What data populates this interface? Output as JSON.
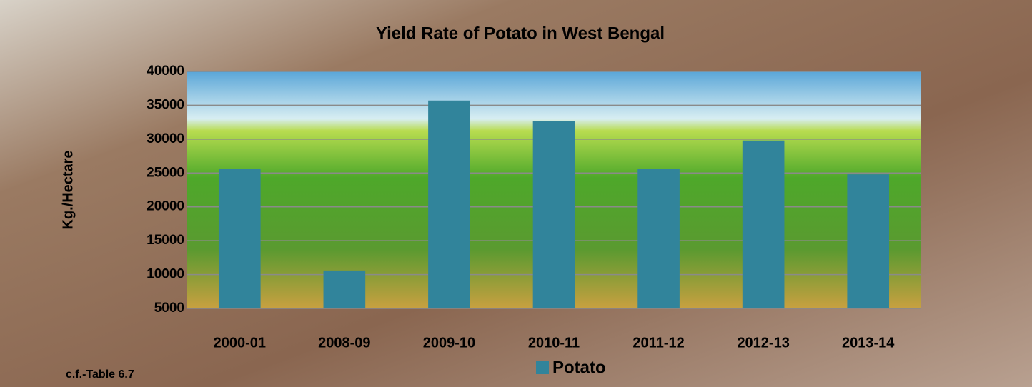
{
  "chart_data": {
    "type": "bar",
    "title": "Yield Rate of Potato in West Bengal",
    "y_label": "Kg./Hectare",
    "note": "c.f.-Table 6.7",
    "categories": [
      "2000-01",
      "2008-09",
      "2009-10",
      "2010-11",
      "2011-12",
      "2012-13",
      "2013-14"
    ],
    "series": [
      {
        "name": "Potato",
        "color": "#31849b",
        "values": [
          25600,
          10600,
          35700,
          32700,
          25600,
          29800,
          24800
        ]
      }
    ],
    "ylim": [
      5000,
      40000
    ],
    "yticks": [
      5000,
      10000,
      15000,
      20000,
      25000,
      30000,
      35000,
      40000
    ],
    "grid": true,
    "legend": "bottom"
  }
}
